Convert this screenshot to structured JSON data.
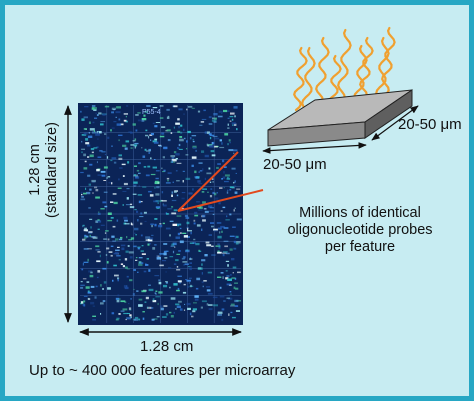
{
  "figure": {
    "array_height_label": "1.28 cm",
    "array_height_note": "(standard size)",
    "array_width_label": "1.28 cm",
    "chip_width_label": "20-50 μm",
    "chip_depth_label": "20-50 μm",
    "feature_description": "Millions of identical oligonucleotide probes per feature",
    "caption": "Up to ~ 400 000 features per microarray",
    "array_corner_text": "P55-4"
  },
  "colors": {
    "frame_border": "#27a7c4",
    "background": "#c7ecf2",
    "array_base": "#0b2457",
    "pointer_line": "#e24a1e",
    "probe_strand": "#f0a030",
    "chip_top": "#b9b9b9",
    "chip_side": "#6b6b6b"
  }
}
